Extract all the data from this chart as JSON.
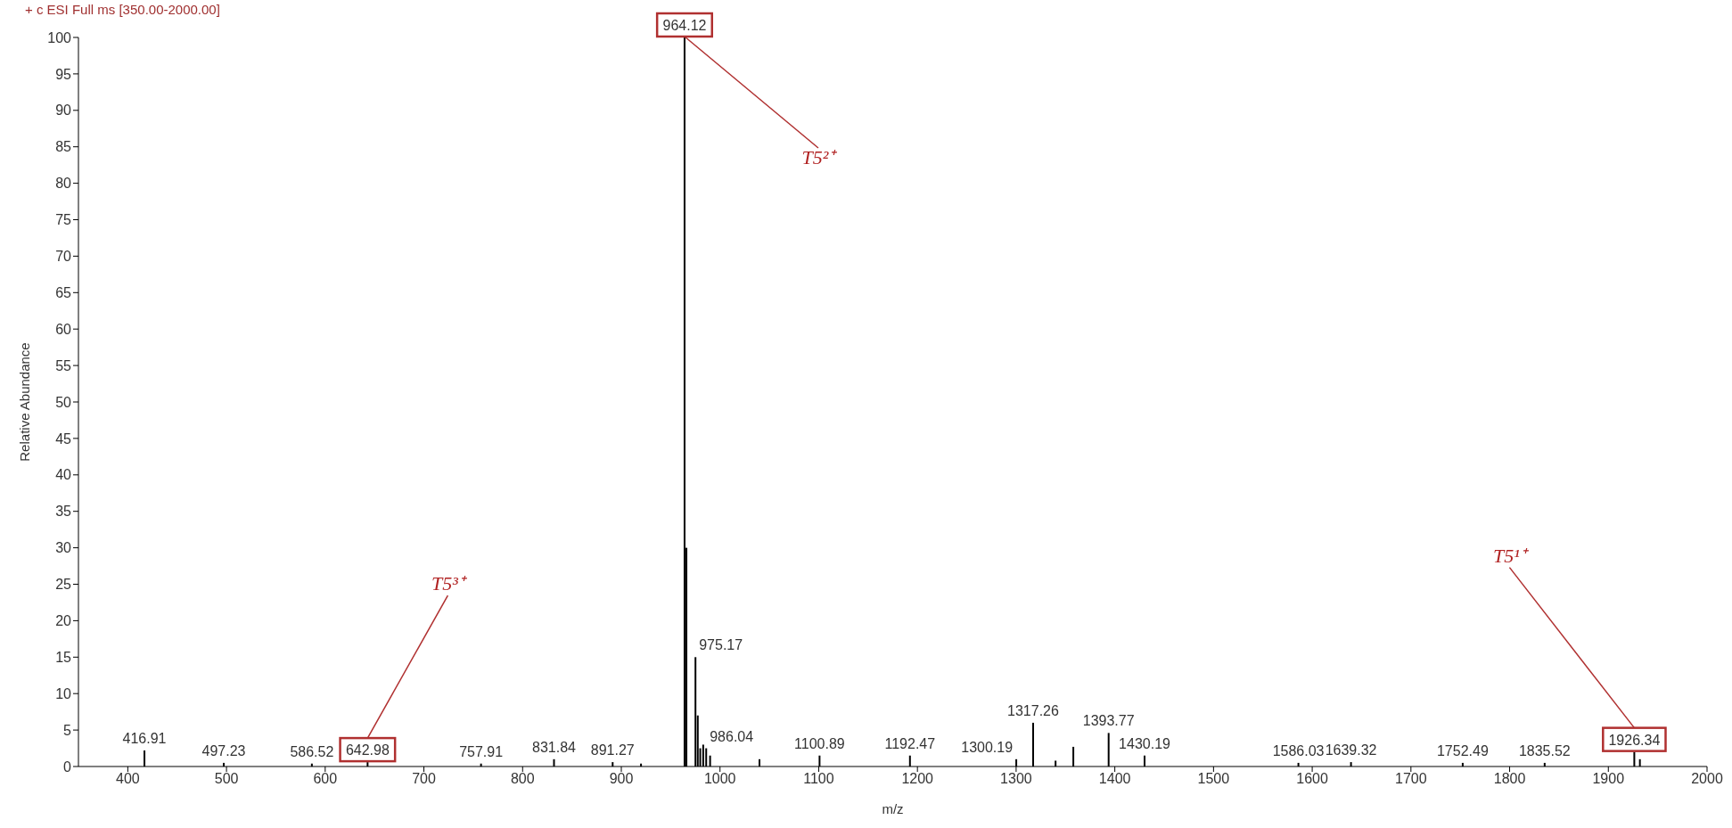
{
  "chart_data": {
    "type": "bar",
    "title": "+ c ESI Full ms [350.00-2000.00]",
    "xlabel": "m/z",
    "ylabel": "Relative Abundance",
    "x": [
      416.91,
      497.23,
      586.52,
      642.98,
      757.91,
      831.84,
      891.27,
      920,
      964.12,
      966,
      975.17,
      977.5,
      980,
      983,
      986.04,
      990,
      1040,
      1100.89,
      1192.47,
      1300.19,
      1317.26,
      1340,
      1358,
      1393.77,
      1430.19,
      1586.03,
      1639.32,
      1752.49,
      1835.52,
      1926.34,
      1932
    ],
    "values": [
      2.2,
      0.5,
      0.4,
      0.6,
      0.4,
      1.0,
      0.6,
      0.4,
      100,
      30,
      15,
      7,
      2.5,
      3,
      2.5,
      1.5,
      1.0,
      1.5,
      1.5,
      1.0,
      6,
      0.8,
      2.7,
      4.6,
      1.5,
      0.5,
      0.6,
      0.5,
      0.5,
      2.0,
      1.0
    ],
    "color": "#000000",
    "xlim": [
      350,
      2000
    ],
    "xticks": [
      400,
      500,
      600,
      700,
      800,
      900,
      1000,
      1100,
      1200,
      1300,
      1400,
      1500,
      1600,
      1700,
      1800,
      1900,
      2000
    ],
    "ylim": [
      0,
      100
    ],
    "yticks": [
      0,
      5,
      10,
      15,
      20,
      25,
      30,
      35,
      40,
      45,
      50,
      55,
      60,
      65,
      70,
      75,
      80,
      85,
      90,
      95,
      100
    ],
    "annotations": [
      {
        "text": "416.91",
        "x": 416.91,
        "y": 2.2
      },
      {
        "text": "497.23",
        "x": 497.23,
        "y": 0.5
      },
      {
        "text": "586.52",
        "x": 586.52,
        "y": 0.4
      },
      {
        "text": "642.98",
        "x": 642.98,
        "y": 0.6
      },
      {
        "text": "757.91",
        "x": 757.91,
        "y": 0.4
      },
      {
        "text": "831.84",
        "x": 831.84,
        "y": 1.0
      },
      {
        "text": "891.27",
        "x": 891.27,
        "y": 0.6
      },
      {
        "text": "964.12",
        "x": 964.12,
        "y": 100
      },
      {
        "text": "975.17",
        "x": 975.17,
        "y": 15
      },
      {
        "text": "986.04",
        "x": 986.04,
        "y": 2.5
      },
      {
        "text": "1100.89",
        "x": 1100.89,
        "y": 1.5
      },
      {
        "text": "1192.47",
        "x": 1192.47,
        "y": 1.5
      },
      {
        "text": "1300.19",
        "x": 1300.19,
        "y": 1.0
      },
      {
        "text": "1317.26",
        "x": 1317.26,
        "y": 6
      },
      {
        "text": "1393.77",
        "x": 1393.77,
        "y": 4.6
      },
      {
        "text": "1430.19",
        "x": 1430.19,
        "y": 1.5
      },
      {
        "text": "1586.03",
        "x": 1586.03,
        "y": 0.5
      },
      {
        "text": "1639.32",
        "x": 1639.32,
        "y": 0.6
      },
      {
        "text": "1752.49",
        "x": 1752.49,
        "y": 0.5
      },
      {
        "text": "1835.52",
        "x": 1835.52,
        "y": 0.5
      },
      {
        "text": "1926.34",
        "x": 1926.34,
        "y": 2.0
      },
      {
        "text": "T5³⁺",
        "x": 642.98
      },
      {
        "text": "T5²⁺",
        "x": 964.12
      },
      {
        "text": "T5¹⁺",
        "x": 1926.34
      }
    ]
  }
}
